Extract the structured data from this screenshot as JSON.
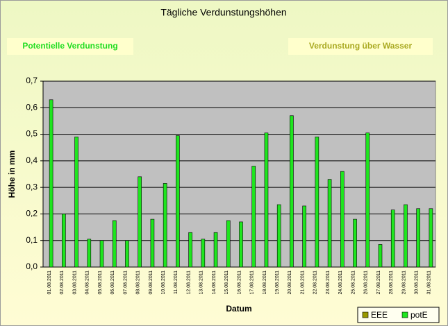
{
  "chart_data": {
    "type": "bar",
    "title": "Tägliche Verdunstungshöhen",
    "buttons": [
      "Potentielle Verdunstung",
      "Verdunstung über Wasser"
    ],
    "xlabel": "Datum",
    "ylabel": "Höhe in mm",
    "categories": [
      "01.08.2011",
      "02.08.2011",
      "03.08.2011",
      "04.08.2011",
      "05.08.2011",
      "06.08.2011",
      "07.08.2011",
      "08.08.2011",
      "09.08.2011",
      "10.08.2011",
      "11.08.2011",
      "12.08.2011",
      "13.08.2011",
      "14.08.2011",
      "15.08.2011",
      "16.08.2011",
      "17.08.2011",
      "18.08.2011",
      "19.08.2011",
      "20.08.2011",
      "21.08.2011",
      "22.08.2011",
      "23.08.2011",
      "24.08.2011",
      "25.08.2011",
      "26.08.2011",
      "27.08.2011",
      "28.08.2011",
      "29.08.2011",
      "30.08.2011",
      "31.08.2011"
    ],
    "series": [
      {
        "name": "EEE",
        "color": "#999900",
        "values": [
          null,
          null,
          null,
          null,
          null,
          null,
          null,
          null,
          null,
          null,
          null,
          null,
          null,
          null,
          null,
          null,
          null,
          null,
          null,
          null,
          null,
          null,
          null,
          null,
          null,
          null,
          null,
          null,
          null,
          null,
          null
        ]
      },
      {
        "name": "potE",
        "color": "#1ee61e",
        "values": [
          0.63,
          0.2,
          0.49,
          0.105,
          0.1,
          0.175,
          0.1,
          0.34,
          0.18,
          0.315,
          0.495,
          0.13,
          0.105,
          0.13,
          0.175,
          0.17,
          0.38,
          0.505,
          0.235,
          0.57,
          0.23,
          0.49,
          0.33,
          0.36,
          0.18,
          0.505,
          0.085,
          0.215,
          0.235,
          0.22,
          0.22
        ]
      }
    ],
    "ylim": [
      0,
      0.7
    ],
    "yticks": [
      {
        "value": 0,
        "label": "0,0"
      },
      {
        "value": 0.1,
        "label": "0,1"
      },
      {
        "value": 0.2,
        "label": "0,2"
      },
      {
        "value": 0.3,
        "label": "0,3"
      },
      {
        "value": 0.4,
        "label": "0,4"
      },
      {
        "value": 0.5,
        "label": "0,5"
      },
      {
        "value": 0.6,
        "label": "0,6"
      },
      {
        "value": 0.7,
        "label": "0,7"
      }
    ],
    "grid": true,
    "legend": "bottom-right"
  }
}
